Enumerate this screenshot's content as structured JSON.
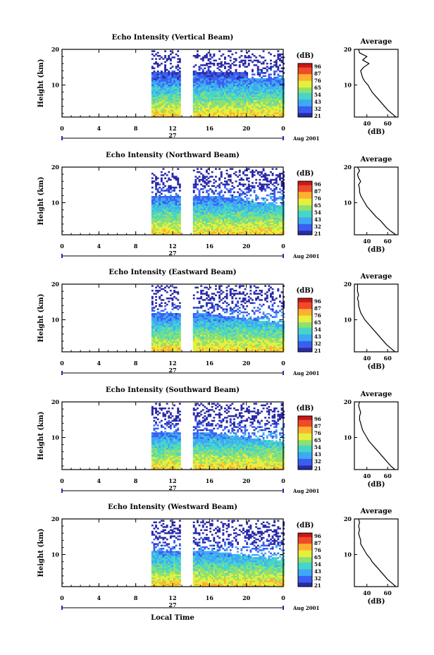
{
  "figure": {
    "xlabel": "Local Time",
    "date_label": "Aug 2001",
    "day_label": "27",
    "colorbar_unit": "(dB)",
    "colorbar_ticks": [
      "96",
      "87",
      "76",
      "65",
      "54",
      "43",
      "32",
      "21"
    ],
    "colormap": [
      "#2a2aa8",
      "#3a5ff0",
      "#3fa9f5",
      "#46d6c8",
      "#8fe070",
      "#e6f03c",
      "#ffb030",
      "#f04a28",
      "#c81818"
    ]
  },
  "chart_data": [
    {
      "type": "heatmap",
      "title": "Echo Intensity (Vertical Beam)",
      "ylabel": "Height (km)",
      "xlim": [
        0,
        24
      ],
      "ylim": [
        1,
        20
      ],
      "x_ticks": [
        "0",
        "4",
        "8",
        "12",
        "16",
        "20",
        "0"
      ],
      "y_ticks": [
        "20",
        "10"
      ],
      "data_intervals_h": [
        [
          9.7,
          12.8
        ],
        [
          14.2,
          24
        ]
      ],
      "profile": {
        "title": "Average",
        "xlabel": "(dB)",
        "x_ticks": [
          "40",
          "60"
        ],
        "y_ticks": [
          "20",
          "10"
        ],
        "xlim": [
          28,
          70
        ],
        "ylim": [
          1,
          20
        ],
        "height_km": [
          1,
          2,
          3,
          4,
          5,
          6,
          7,
          8,
          9,
          10,
          11,
          12,
          13,
          14,
          15,
          16,
          17,
          18,
          19,
          20
        ],
        "mean_db": [
          68,
          64,
          60,
          57,
          54,
          51,
          48,
          45,
          43,
          41,
          38,
          36,
          35,
          34,
          37,
          42,
          36,
          40,
          33,
          32
        ]
      }
    },
    {
      "type": "heatmap",
      "title": "Echo Intensity (Northward Beam)",
      "ylabel": "Height (km)",
      "xlim": [
        0,
        24
      ],
      "ylim": [
        1,
        20
      ],
      "x_ticks": [
        "0",
        "4",
        "8",
        "12",
        "16",
        "20",
        "0"
      ],
      "y_ticks": [
        "20",
        "10"
      ],
      "data_intervals_h": [
        [
          9.7,
          12.8
        ],
        [
          14.2,
          24
        ]
      ],
      "profile": {
        "title": "Average",
        "xlabel": "(dB)",
        "x_ticks": [
          "40",
          "60"
        ],
        "y_ticks": [
          "20",
          "10"
        ],
        "xlim": [
          28,
          70
        ],
        "ylim": [
          1,
          20
        ],
        "height_km": [
          1,
          2,
          3,
          4,
          5,
          6,
          7,
          8,
          9,
          10,
          11,
          12,
          13,
          14,
          15,
          16,
          17,
          18,
          19,
          20
        ],
        "mean_db": [
          68,
          63,
          59,
          56,
          53,
          49,
          46,
          43,
          40,
          38,
          36,
          34,
          33,
          33,
          32,
          34,
          32,
          31,
          33,
          31
        ]
      }
    },
    {
      "type": "heatmap",
      "title": "Echo Intensity (Eastward Beam)",
      "ylabel": "Height (km)",
      "xlim": [
        0,
        24
      ],
      "ylim": [
        1,
        20
      ],
      "x_ticks": [
        "0",
        "4",
        "8",
        "12",
        "16",
        "20",
        "0"
      ],
      "y_ticks": [
        "20",
        "10"
      ],
      "data_intervals_h": [
        [
          9.7,
          12.8
        ],
        [
          14.2,
          24
        ]
      ],
      "profile": {
        "title": "Average",
        "xlabel": "(dB)",
        "x_ticks": [
          "40",
          "60"
        ],
        "y_ticks": [
          "20",
          "10"
        ],
        "xlim": [
          28,
          70
        ],
        "ylim": [
          1,
          20
        ],
        "height_km": [
          1,
          2,
          3,
          4,
          5,
          6,
          7,
          8,
          9,
          10,
          11,
          12,
          13,
          14,
          15,
          16,
          17,
          18,
          19,
          20
        ],
        "mean_db": [
          67,
          63,
          59,
          56,
          53,
          50,
          47,
          44,
          41,
          38,
          36,
          34,
          33,
          32,
          32,
          31,
          32,
          31,
          31,
          31
        ]
      }
    },
    {
      "type": "heatmap",
      "title": "Echo Intensity (Southward Beam)",
      "ylabel": "Height (km)",
      "xlim": [
        0,
        24
      ],
      "ylim": [
        1,
        20
      ],
      "x_ticks": [
        "0",
        "4",
        "8",
        "12",
        "16",
        "20",
        "0"
      ],
      "y_ticks": [
        "20",
        "10"
      ],
      "data_intervals_h": [
        [
          9.7,
          12.8
        ],
        [
          14.2,
          24
        ]
      ],
      "profile": {
        "title": "Average",
        "xlabel": "(dB)",
        "x_ticks": [
          "40",
          "60"
        ],
        "y_ticks": [
          "20",
          "10"
        ],
        "xlim": [
          28,
          70
        ],
        "ylim": [
          1,
          20
        ],
        "height_km": [
          1,
          2,
          3,
          4,
          5,
          6,
          7,
          8,
          9,
          10,
          11,
          12,
          13,
          14,
          15,
          16,
          17,
          18,
          19,
          20
        ],
        "mean_db": [
          67,
          63,
          60,
          57,
          54,
          51,
          48,
          45,
          42,
          40,
          38,
          36,
          35,
          34,
          33,
          33,
          34,
          33,
          32,
          33
        ]
      }
    },
    {
      "type": "heatmap",
      "title": "Echo Intensity (Westward Beam)",
      "ylabel": "Height (km)",
      "xlim": [
        0,
        24
      ],
      "ylim": [
        1,
        20
      ],
      "x_ticks": [
        "0",
        "4",
        "8",
        "12",
        "16",
        "20",
        "0"
      ],
      "y_ticks": [
        "20",
        "10"
      ],
      "data_intervals_h": [
        [
          9.7,
          12.8
        ],
        [
          14.2,
          24
        ]
      ],
      "profile": {
        "title": "Average",
        "xlabel": "(dB)",
        "x_ticks": [
          "40",
          "60"
        ],
        "y_ticks": [
          "20",
          "10"
        ],
        "xlim": [
          28,
          70
        ],
        "ylim": [
          1,
          20
        ],
        "height_km": [
          1,
          2,
          3,
          4,
          5,
          6,
          7,
          8,
          9,
          10,
          11,
          12,
          13,
          14,
          15,
          16,
          17,
          18,
          19,
          20
        ],
        "mean_db": [
          68,
          64,
          60,
          57,
          54,
          51,
          48,
          45,
          43,
          40,
          38,
          36,
          34,
          34,
          33,
          32,
          33,
          32,
          33,
          32
        ]
      }
    }
  ]
}
